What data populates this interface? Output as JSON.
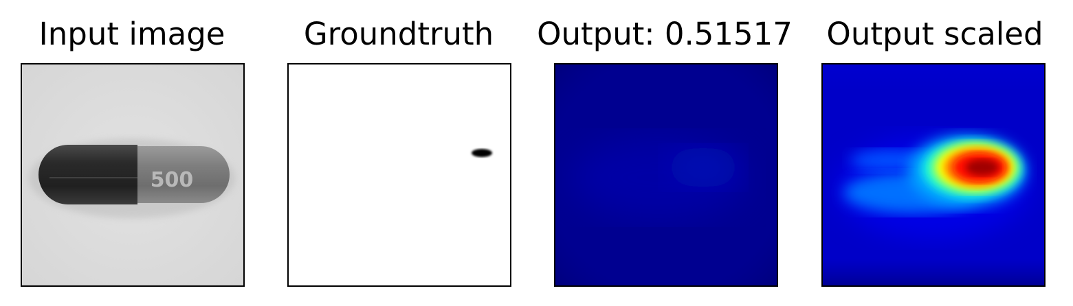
{
  "panels": [
    {
      "title": "Input image"
    },
    {
      "title": "Groundtruth"
    },
    {
      "title": "Output: 0.51517"
    },
    {
      "title": "Output scaled"
    }
  ],
  "capsule_print": "500"
}
